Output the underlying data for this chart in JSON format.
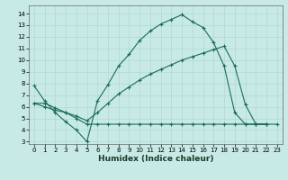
{
  "xlabel": "Humidex (Indice chaleur)",
  "xlim": [
    -0.5,
    23.5
  ],
  "ylim": [
    2.8,
    14.7
  ],
  "yticks": [
    3,
    4,
    5,
    6,
    7,
    8,
    9,
    10,
    11,
    12,
    13,
    14
  ],
  "xticks": [
    0,
    1,
    2,
    3,
    4,
    5,
    6,
    7,
    8,
    9,
    10,
    11,
    12,
    13,
    14,
    15,
    16,
    17,
    18,
    19,
    20,
    21,
    22,
    23
  ],
  "bg_color": "#c8eae6",
  "grid_color": "#b0d8d4",
  "line_color": "#1a6b5a",
  "line1_x": [
    0,
    1,
    2,
    3,
    4,
    5,
    6,
    7,
    8,
    9,
    10,
    11,
    12,
    13,
    14,
    15,
    16,
    17,
    18,
    19,
    20,
    21,
    22
  ],
  "line1_y": [
    7.8,
    6.5,
    5.5,
    4.7,
    4.0,
    3.0,
    6.5,
    7.9,
    9.5,
    10.5,
    11.7,
    12.5,
    13.1,
    13.5,
    13.9,
    13.3,
    12.8,
    11.5,
    9.5,
    5.5,
    4.5,
    4.5,
    4.5
  ],
  "line2_x": [
    0,
    1,
    2,
    3,
    4,
    5,
    6,
    7,
    8,
    9,
    10,
    11,
    12,
    13,
    14,
    15,
    16,
    17,
    18,
    19,
    20,
    21,
    22
  ],
  "line2_y": [
    6.3,
    6.0,
    5.7,
    5.5,
    5.0,
    4.5,
    4.5,
    4.5,
    4.5,
    4.5,
    4.5,
    4.5,
    4.5,
    4.5,
    4.5,
    4.5,
    4.5,
    4.5,
    4.5,
    4.5,
    4.5,
    4.5,
    4.5
  ],
  "line3_x": [
    0,
    1,
    2,
    3,
    4,
    5,
    6,
    7,
    8,
    9,
    10,
    11,
    12,
    13,
    14,
    15,
    16,
    17,
    18,
    19,
    20,
    21,
    22,
    23
  ],
  "line3_y": [
    6.3,
    6.3,
    5.9,
    5.5,
    5.2,
    4.8,
    5.5,
    6.3,
    7.1,
    7.7,
    8.3,
    8.8,
    9.2,
    9.6,
    10.0,
    10.3,
    10.6,
    10.9,
    11.2,
    9.5,
    6.2,
    4.5,
    4.5,
    4.5
  ]
}
